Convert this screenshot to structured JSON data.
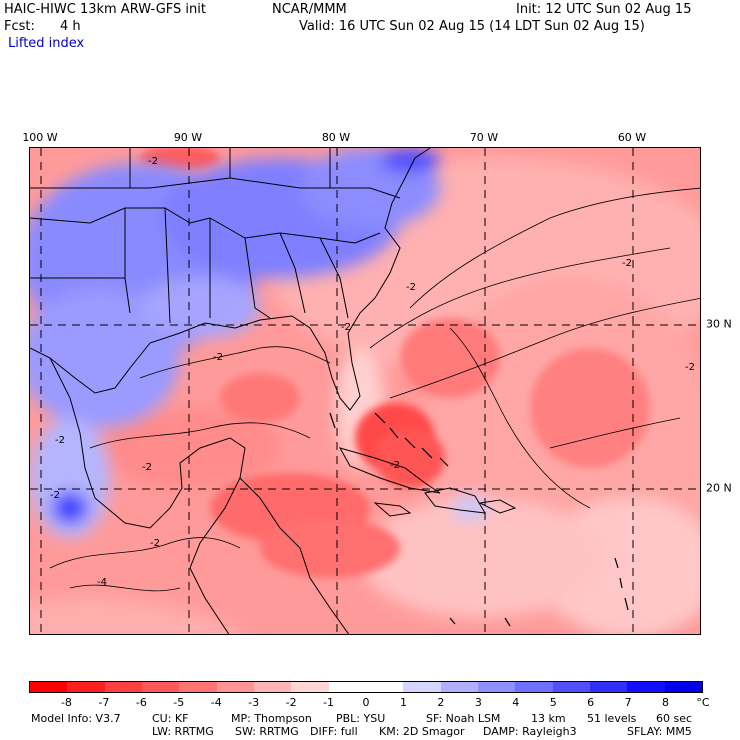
{
  "header": {
    "model_title": "HAIC-HIWC 13km ARW-GFS init",
    "center": "NCAR/MMM",
    "init_label": "Init: 12 UTC Sun 02 Aug 15",
    "fcst_label": "Fcst:",
    "fcst_value": "4 h",
    "valid_label": "Valid: 16 UTC Sun 02 Aug 15 (14 LDT Sun 02 Aug 15)",
    "field_name": "Lifted index"
  },
  "map": {
    "lon_labels": [
      "100 W",
      "90 W",
      "80 W",
      "70 W",
      "60 W"
    ],
    "lat_labels": [
      "30 N",
      "20 N"
    ],
    "contour_labels": [
      "-2",
      "-2",
      "-2",
      "-2",
      "-2",
      "-2",
      "-2",
      "-2",
      "-2",
      "-2",
      "-4",
      "-2"
    ]
  },
  "colorbar": {
    "labels": [
      "-8",
      "-7",
      "-6",
      "-5",
      "-4",
      "-3",
      "-2",
      "-1",
      "0",
      "1",
      "2",
      "3",
      "4",
      "5",
      "6",
      "7",
      "8"
    ],
    "unit": "°C",
    "colors": [
      "#ff0000",
      "#ff2020",
      "#ff4040",
      "#ff5a5a",
      "#ff7575",
      "#ff9595",
      "#ffb5b5",
      "#ffd5d5",
      "#ffffff",
      "#ffffff",
      "#d5d5ff",
      "#b0b0ff",
      "#9090ff",
      "#7070ff",
      "#5050ff",
      "#3030ff",
      "#1010ff",
      "#0000ee"
    ]
  },
  "footer": {
    "model_info": "Model Info: V3.7",
    "cu": "CU: KF",
    "mp": "MP: Thompson",
    "pbl": "PBL: YSU",
    "sf": "SF: Noah LSM",
    "res": "13 km",
    "levels": "51 levels",
    "dt": "60 sec",
    "lw": "LW: RRTMG",
    "sw": "SW: RRTMG",
    "diff": "DIFF: full",
    "km": "KM: 2D Smagor",
    "damp": "DAMP: Rayleigh3",
    "sflay": "SFLAY: MM5"
  }
}
